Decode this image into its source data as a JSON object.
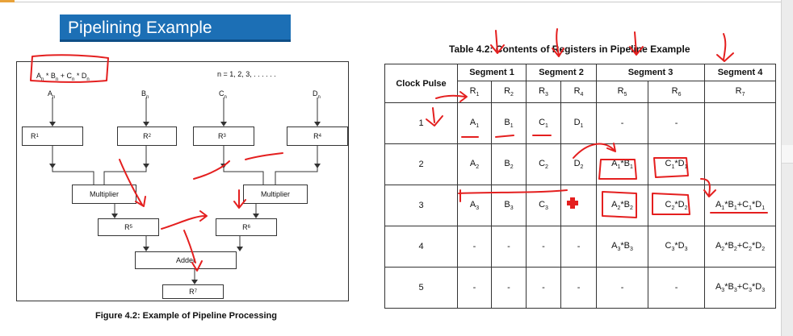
{
  "slide_title": "Pipelining Example",
  "figure": {
    "formula": {
      "a": "A",
      "a_sub": "n",
      "b": "B",
      "b_sub": "n",
      "c": "C",
      "c_sub": "n",
      "d": "D",
      "d_sub": "n"
    },
    "range": "n = 1, 2, 3, . . . . . .",
    "inputs": [
      {
        "name": "A",
        "sub": "n"
      },
      {
        "name": "B",
        "sub": "n"
      },
      {
        "name": "C",
        "sub": "n"
      },
      {
        "name": "D",
        "sub": "n"
      }
    ],
    "registers_top": [
      {
        "name": "R",
        "sub": "1"
      },
      {
        "name": "R",
        "sub": "2"
      },
      {
        "name": "R",
        "sub": "3"
      },
      {
        "name": "R",
        "sub": "4"
      }
    ],
    "multiplier_left": "Multiplier",
    "multiplier_right": "Multiplier",
    "reg5": {
      "name": "R",
      "sub": "5"
    },
    "reg6": {
      "name": "R",
      "sub": "6"
    },
    "adder": "Adder",
    "reg7": {
      "name": "R",
      "sub": "7"
    },
    "caption": "Figure 4.2:  Example of Pipeline Processing"
  },
  "table": {
    "caption": "Table 4.2: Contents of Registers in Pipeline Example",
    "clock_header": "Clock Pulse",
    "segments": [
      "Segment 1",
      "Segment 2",
      "Segment 3",
      "Segment 4"
    ],
    "registers": [
      {
        "name": "R",
        "sub": "1"
      },
      {
        "name": "R",
        "sub": "2"
      },
      {
        "name": "R",
        "sub": "3"
      },
      {
        "name": "R",
        "sub": "4"
      },
      {
        "name": "R",
        "sub": "5"
      },
      {
        "name": "R",
        "sub": "6"
      },
      {
        "name": "R",
        "sub": "7"
      }
    ],
    "rows": [
      {
        "pulse": "1",
        "cells": [
          "A1",
          "B1",
          "C1",
          "D1",
          "-",
          "-",
          ""
        ]
      },
      {
        "pulse": "2",
        "cells": [
          "A2",
          "B2",
          "C2",
          "D2",
          "A1*B1",
          "C1*D1",
          ""
        ]
      },
      {
        "pulse": "3",
        "cells": [
          "A3",
          "B3",
          "C3",
          "",
          "A2*B2",
          "C2*D2",
          "A1*B1+C1*D1"
        ]
      },
      {
        "pulse": "4",
        "cells": [
          "-",
          "-",
          "-",
          "-",
          "A3*B3",
          "C3*D3",
          "A2*B2+C2*D2"
        ]
      },
      {
        "pulse": "5",
        "cells": [
          "-",
          "-",
          "-",
          "-",
          "-",
          "-",
          "A3*B3+C3*D3"
        ]
      }
    ]
  },
  "colors": {
    "banner": "#1c6fb5",
    "annotation": "#e41f1f"
  }
}
